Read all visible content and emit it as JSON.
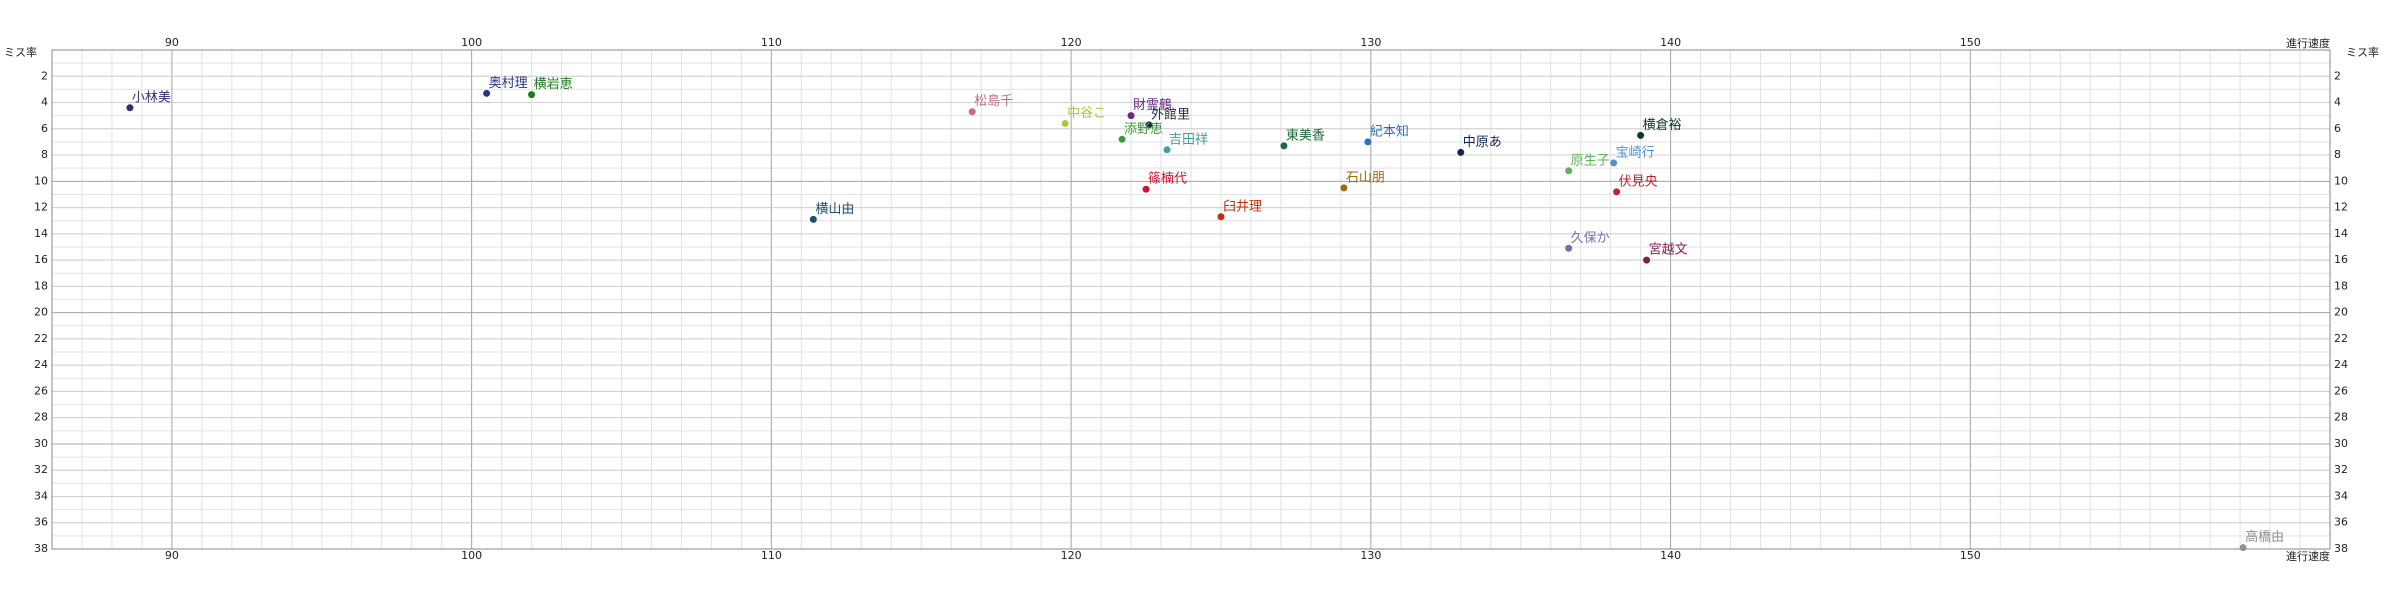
{
  "chart_data": {
    "type": "scatter",
    "x_label": "進行速度",
    "y_label": "ミス率",
    "xlim": [
      86,
      162
    ],
    "ylim": [
      0,
      38
    ],
    "y_inverted": true,
    "xticks": [
      90,
      100,
      110,
      120,
      130,
      140,
      150
    ],
    "yticks": [
      2,
      4,
      6,
      8,
      10,
      12,
      14,
      16,
      18,
      20,
      22,
      24,
      26,
      28,
      30,
      32,
      34,
      36,
      38
    ],
    "grid": true,
    "points": [
      {
        "name": "小林美",
        "color": "#3b2a6e",
        "x": 88.6,
        "y": 4.4
      },
      {
        "name": "奥村理",
        "color": "#2a3580",
        "x": 100.5,
        "y": 3.3
      },
      {
        "name": "横岩恵",
        "color": "#1f7a1f",
        "x": 102.0,
        "y": 3.4
      },
      {
        "name": "松島千",
        "color": "#c07080",
        "x": 116.7,
        "y": 4.7
      },
      {
        "name": "中谷こ",
        "color": "#a8c840",
        "x": 119.8,
        "y": 5.6
      },
      {
        "name": "財霊鶴",
        "color": "#6a2a8a",
        "x": 122.0,
        "y": 5.0
      },
      {
        "name": "外館里",
        "color": "#203040",
        "x": 122.6,
        "y": 5.7
      },
      {
        "name": "添野恵",
        "color": "#3a9a3a",
        "x": 121.7,
        "y": 6.8
      },
      {
        "name": "吉田祥",
        "color": "#40a0a0",
        "x": 123.2,
        "y": 7.6
      },
      {
        "name": "東美香",
        "color": "#1a6a3a",
        "x": 127.1,
        "y": 7.3
      },
      {
        "name": "紀本知",
        "color": "#3070c0",
        "x": 129.9,
        "y": 7.0
      },
      {
        "name": "中原あ",
        "color": "#102850",
        "x": 133.0,
        "y": 7.8
      },
      {
        "name": "横倉裕",
        "color": "#103828",
        "x": 139.0,
        "y": 6.5
      },
      {
        "name": "原生子",
        "color": "#60b060",
        "x": 136.6,
        "y": 9.2
      },
      {
        "name": "宝崎行",
        "color": "#5090d0",
        "x": 138.1,
        "y": 8.6
      },
      {
        "name": "伏見央",
        "color": "#c02030",
        "x": 138.2,
        "y": 10.8
      },
      {
        "name": "篠楠代",
        "color": "#d01030",
        "x": 122.5,
        "y": 10.6
      },
      {
        "name": "石山朋",
        "color": "#9a6a10",
        "x": 129.1,
        "y": 10.5
      },
      {
        "name": "臼井理",
        "color": "#c03010",
        "x": 125.0,
        "y": 12.7
      },
      {
        "name": "横山由",
        "color": "#205070",
        "x": 111.4,
        "y": 12.9
      },
      {
        "name": "久保か",
        "color": "#7070b0",
        "x": 136.6,
        "y": 15.1
      },
      {
        "name": "宮越文",
        "color": "#802050",
        "x": 139.2,
        "y": 16.0
      },
      {
        "name": "高橋由",
        "color": "#909090",
        "x": 159.1,
        "y": 37.9
      }
    ]
  }
}
